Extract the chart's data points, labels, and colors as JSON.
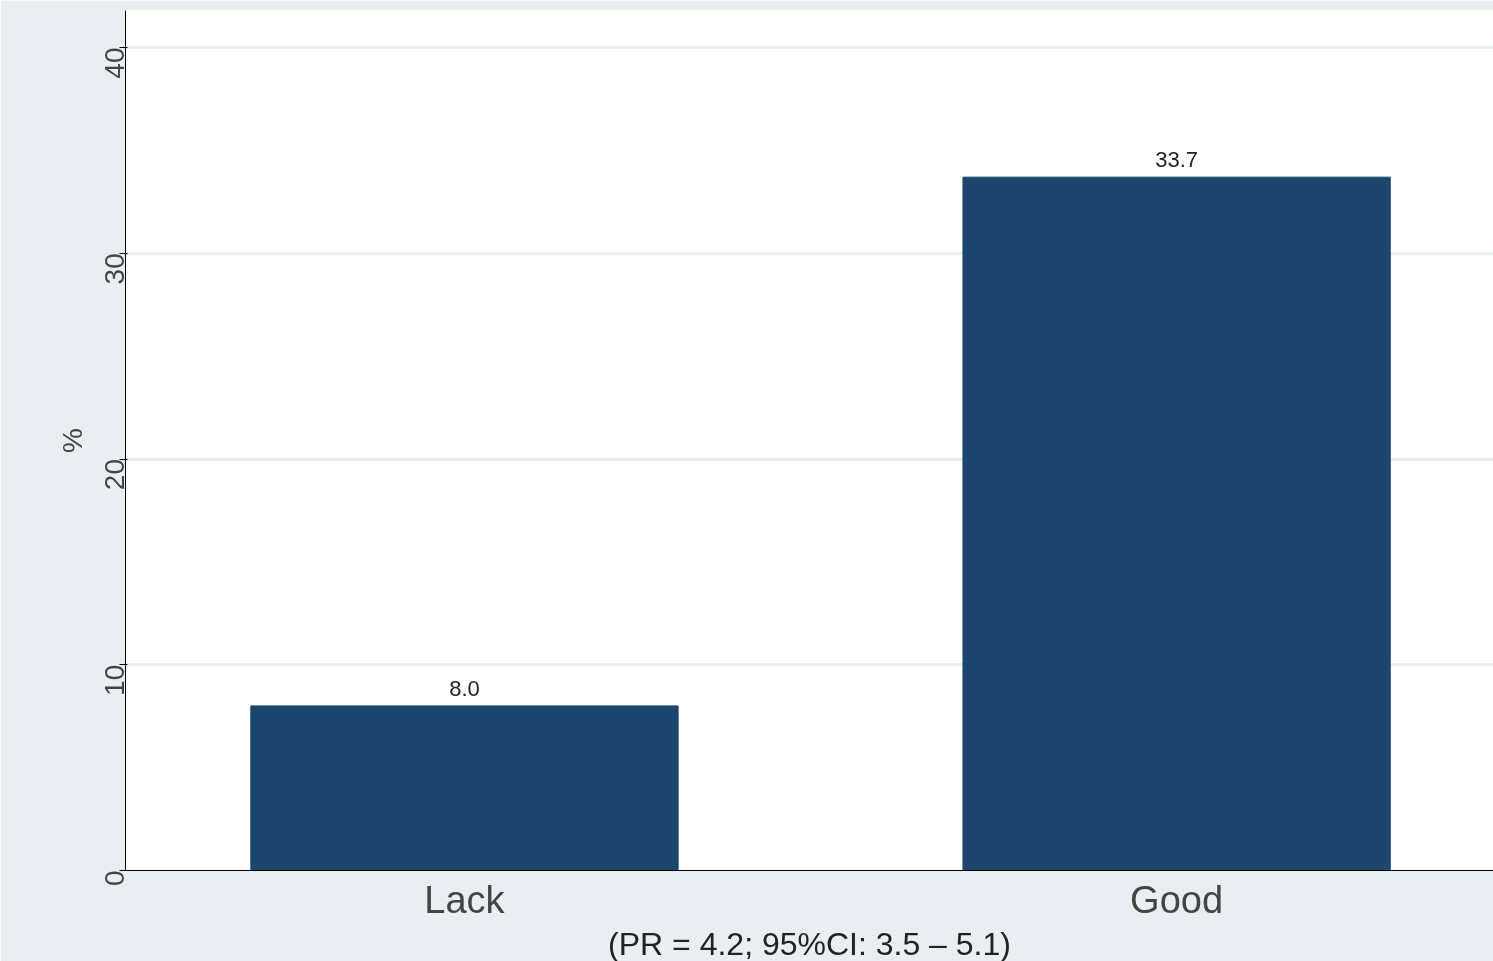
{
  "chart_data": {
    "type": "bar",
    "ylabel": "%",
    "categories": [
      "Lack",
      "Good"
    ],
    "values": [
      8.0,
      33.7
    ],
    "value_labels": [
      "8.0",
      "33.7"
    ],
    "color": "#1c466e",
    "ylim": [
      0,
      41.8
    ],
    "yticks": [
      0,
      10,
      20,
      30,
      40
    ],
    "grid": "y",
    "annotations": [
      "(PR = 4.2; 95%CI: 3.5 – 5.1)"
    ]
  }
}
